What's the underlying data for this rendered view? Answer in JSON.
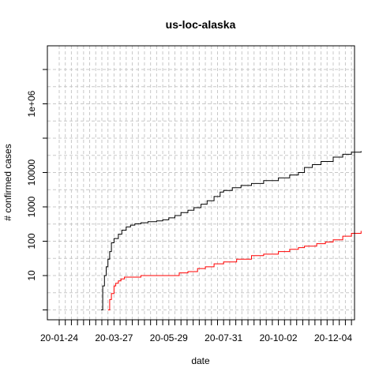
{
  "chart_data": {
    "type": "line",
    "title": "us-loc-alaska",
    "xlabel": "date",
    "ylabel": "# confirmed cases",
    "y_scale": "log",
    "grid": true,
    "x_tick_labels": [
      "20-01-24",
      "20-03-27",
      "20-05-29",
      "20-07-31",
      "20-10-02",
      "20-12-04"
    ],
    "y_tick_labels": [
      "10",
      "100",
      "1000",
      "10000",
      "1e+06"
    ],
    "series": [
      {
        "color": "#000000",
        "points": [
          [
            "2020-03-12",
            1
          ],
          [
            "2020-03-14",
            5
          ],
          [
            "2020-03-16",
            10
          ],
          [
            "2020-03-18",
            18
          ],
          [
            "2020-03-20",
            30
          ],
          [
            "2020-03-22",
            50
          ],
          [
            "2020-03-24",
            90
          ],
          [
            "2020-03-27",
            120
          ],
          [
            "2020-04-01",
            160
          ],
          [
            "2020-04-05",
            210
          ],
          [
            "2020-04-10",
            260
          ],
          [
            "2020-04-15",
            295
          ],
          [
            "2020-04-20",
            320
          ],
          [
            "2020-04-27",
            345
          ],
          [
            "2020-05-05",
            370
          ],
          [
            "2020-05-15",
            390
          ],
          [
            "2020-05-22",
            420
          ],
          [
            "2020-05-29",
            480
          ],
          [
            "2020-06-05",
            560
          ],
          [
            "2020-06-12",
            680
          ],
          [
            "2020-06-20",
            800
          ],
          [
            "2020-06-27",
            950
          ],
          [
            "2020-07-05",
            1200
          ],
          [
            "2020-07-12",
            1500
          ],
          [
            "2020-07-20",
            2000
          ],
          [
            "2020-07-27",
            2700
          ],
          [
            "2020-07-31",
            3000
          ],
          [
            "2020-08-10",
            3600
          ],
          [
            "2020-08-20",
            4200
          ],
          [
            "2020-09-01",
            4800
          ],
          [
            "2020-09-15",
            5800
          ],
          [
            "2020-10-02",
            7000
          ],
          [
            "2020-10-15",
            8500
          ],
          [
            "2020-10-25",
            10000
          ],
          [
            "2020-11-01",
            14000
          ],
          [
            "2020-11-10",
            17000
          ],
          [
            "2020-11-20",
            21000
          ],
          [
            "2020-12-04",
            28000
          ],
          [
            "2020-12-15",
            34000
          ],
          [
            "2020-12-25",
            39000
          ],
          [
            "2021-01-05",
            42000
          ]
        ]
      },
      {
        "color": "#ff0000",
        "points": [
          [
            "2020-03-20",
            1
          ],
          [
            "2020-03-22",
            2
          ],
          [
            "2020-03-24",
            3
          ],
          [
            "2020-03-27",
            5
          ],
          [
            "2020-03-29",
            6
          ],
          [
            "2020-04-01",
            7
          ],
          [
            "2020-04-04",
            8
          ],
          [
            "2020-04-08",
            9
          ],
          [
            "2020-04-20",
            9
          ],
          [
            "2020-04-27",
            10
          ],
          [
            "2020-05-29",
            10
          ],
          [
            "2020-06-10",
            12
          ],
          [
            "2020-06-20",
            13
          ],
          [
            "2020-07-01",
            16
          ],
          [
            "2020-07-10",
            18
          ],
          [
            "2020-07-20",
            22
          ],
          [
            "2020-07-31",
            25
          ],
          [
            "2020-08-15",
            30
          ],
          [
            "2020-09-01",
            38
          ],
          [
            "2020-09-15",
            42
          ],
          [
            "2020-10-02",
            50
          ],
          [
            "2020-10-15",
            58
          ],
          [
            "2020-10-25",
            65
          ],
          [
            "2020-11-01",
            72
          ],
          [
            "2020-11-15",
            85
          ],
          [
            "2020-11-25",
            95
          ],
          [
            "2020-12-04",
            110
          ],
          [
            "2020-12-15",
            140
          ],
          [
            "2020-12-25",
            170
          ],
          [
            "2021-01-05",
            200
          ]
        ]
      }
    ]
  }
}
